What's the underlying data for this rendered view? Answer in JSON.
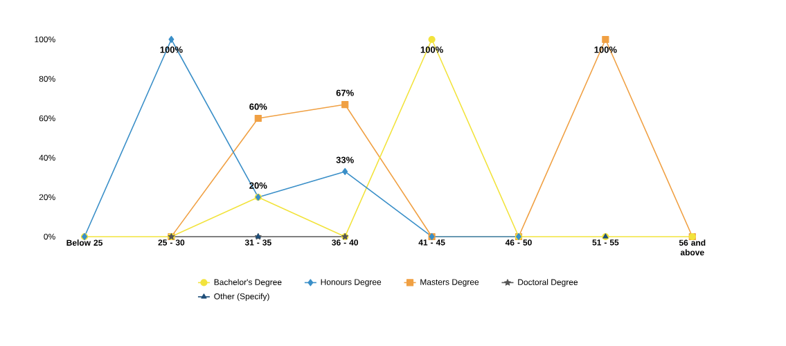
{
  "chart_data": {
    "type": "line",
    "categories": [
      "Below 25",
      "25 - 30",
      "31 - 35",
      "36 - 40",
      "41 - 45",
      "46 - 50",
      "51 - 55",
      "56 and above"
    ],
    "series": [
      {
        "name": "Bachelor's Degree",
        "color": "#f2e33c",
        "marker": "circle",
        "values": [
          0,
          0,
          20,
          0,
          100,
          0,
          0,
          0
        ],
        "value_labels": [
          null,
          null,
          "20%",
          null,
          "100%",
          null,
          null,
          null
        ]
      },
      {
        "name": "Honours Degree",
        "color": "#3a8fc8",
        "marker": "diamond",
        "values": [
          0,
          100,
          20,
          33,
          0,
          0,
          null,
          null
        ],
        "value_labels": [
          null,
          "100%",
          null,
          "33%",
          null,
          null,
          null,
          null
        ]
      },
      {
        "name": "Masters Degree",
        "color": "#f0a043",
        "marker": "square",
        "values": [
          null,
          0,
          60,
          67,
          0,
          0,
          100,
          0
        ],
        "value_labels": [
          null,
          null,
          "60%",
          "67%",
          null,
          null,
          "100%",
          null
        ]
      },
      {
        "name": "Doctoral Degree",
        "color": "#555555",
        "marker": "star",
        "values": [
          null,
          0,
          0,
          0,
          null,
          null,
          null,
          null
        ]
      },
      {
        "name": "Other (Specify)",
        "type": "scatter",
        "color": "#1f4e79",
        "marker": "triangle",
        "values": [
          null,
          null,
          0,
          null,
          null,
          null,
          0,
          null
        ]
      }
    ],
    "ylim": [
      0,
      100
    ],
    "yticks": [
      {
        "value": 0,
        "label": "0%"
      },
      {
        "value": 20,
        "label": "20%"
      },
      {
        "value": 40,
        "label": "40%"
      },
      {
        "value": 60,
        "label": "60%"
      },
      {
        "value": 80,
        "label": "80%"
      },
      {
        "value": 100,
        "label": "100%"
      }
    ],
    "grid": false,
    "legend": "bottom",
    "line_style": "solid"
  }
}
